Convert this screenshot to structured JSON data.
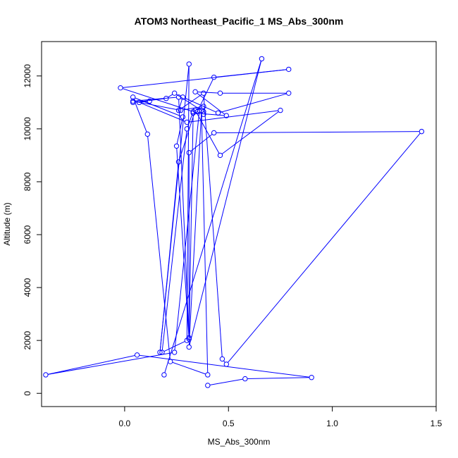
{
  "chart_data": {
    "type": "line",
    "title": "ATOM3 Northeast_Pacific_1 MS_Abs_300nm",
    "xlabel": "MS_Abs_300nm",
    "ylabel": "Altitude (m)",
    "xlim": [
      -0.4,
      1.5
    ],
    "ylim": [
      -500,
      13300
    ],
    "x_ticks": [
      0.0,
      0.5,
      1.0,
      1.5
    ],
    "x_tick_labels": [
      "0.0",
      "0.5",
      "1.0",
      "1.5"
    ],
    "y_ticks": [
      0,
      2000,
      4000,
      6000,
      8000,
      10000,
      12000
    ],
    "y_tick_labels": [
      "0",
      "2000",
      "4000",
      "6000",
      "8000",
      "10000",
      "12000"
    ],
    "grid": false,
    "series_color": "#0000ff",
    "x": [
      0.4,
      0.58,
      0.9,
      0.06,
      -0.38,
      0.24,
      0.36,
      0.35,
      0.43,
      0.79,
      -0.02,
      0.33,
      0.3,
      0.18,
      0.3,
      0.31,
      0.17,
      0.26,
      0.34,
      0.46,
      0.75,
      0.3,
      0.07,
      0.12,
      0.04,
      0.2,
      0.24,
      0.38,
      0.38,
      0.38,
      0.27,
      0.04,
      0.26,
      0.31,
      0.31,
      0.43,
      1.43,
      0.49,
      0.47,
      0.38,
      0.26,
      0.28,
      0.45,
      0.79,
      0.46,
      0.34,
      0.49,
      0.33,
      0.31,
      0.25,
      0.28,
      0.04,
      0.11,
      0.22,
      0.4,
      0.37,
      0.31,
      0.66,
      0.19
    ],
    "y": [
      300,
      550,
      600,
      1450,
      700,
      1550,
      10700,
      10650,
      11950,
      12250,
      11550,
      10650,
      10000,
      1550,
      2000,
      12450,
      1550,
      8750,
      10700,
      9000,
      10700,
      10250,
      11000,
      11050,
      11000,
      11150,
      11350,
      10650,
      10550,
      10850,
      10700,
      11050,
      11200,
      2100,
      9100,
      9850,
      9900,
      1100,
      1300,
      11350,
      10700,
      11200,
      10600,
      11350,
      11350,
      11400,
      10500,
      10600,
      2050,
      9350,
      10450,
      11200,
      9800,
      1200,
      700,
      10700,
      1750,
      12650,
      700
    ]
  }
}
